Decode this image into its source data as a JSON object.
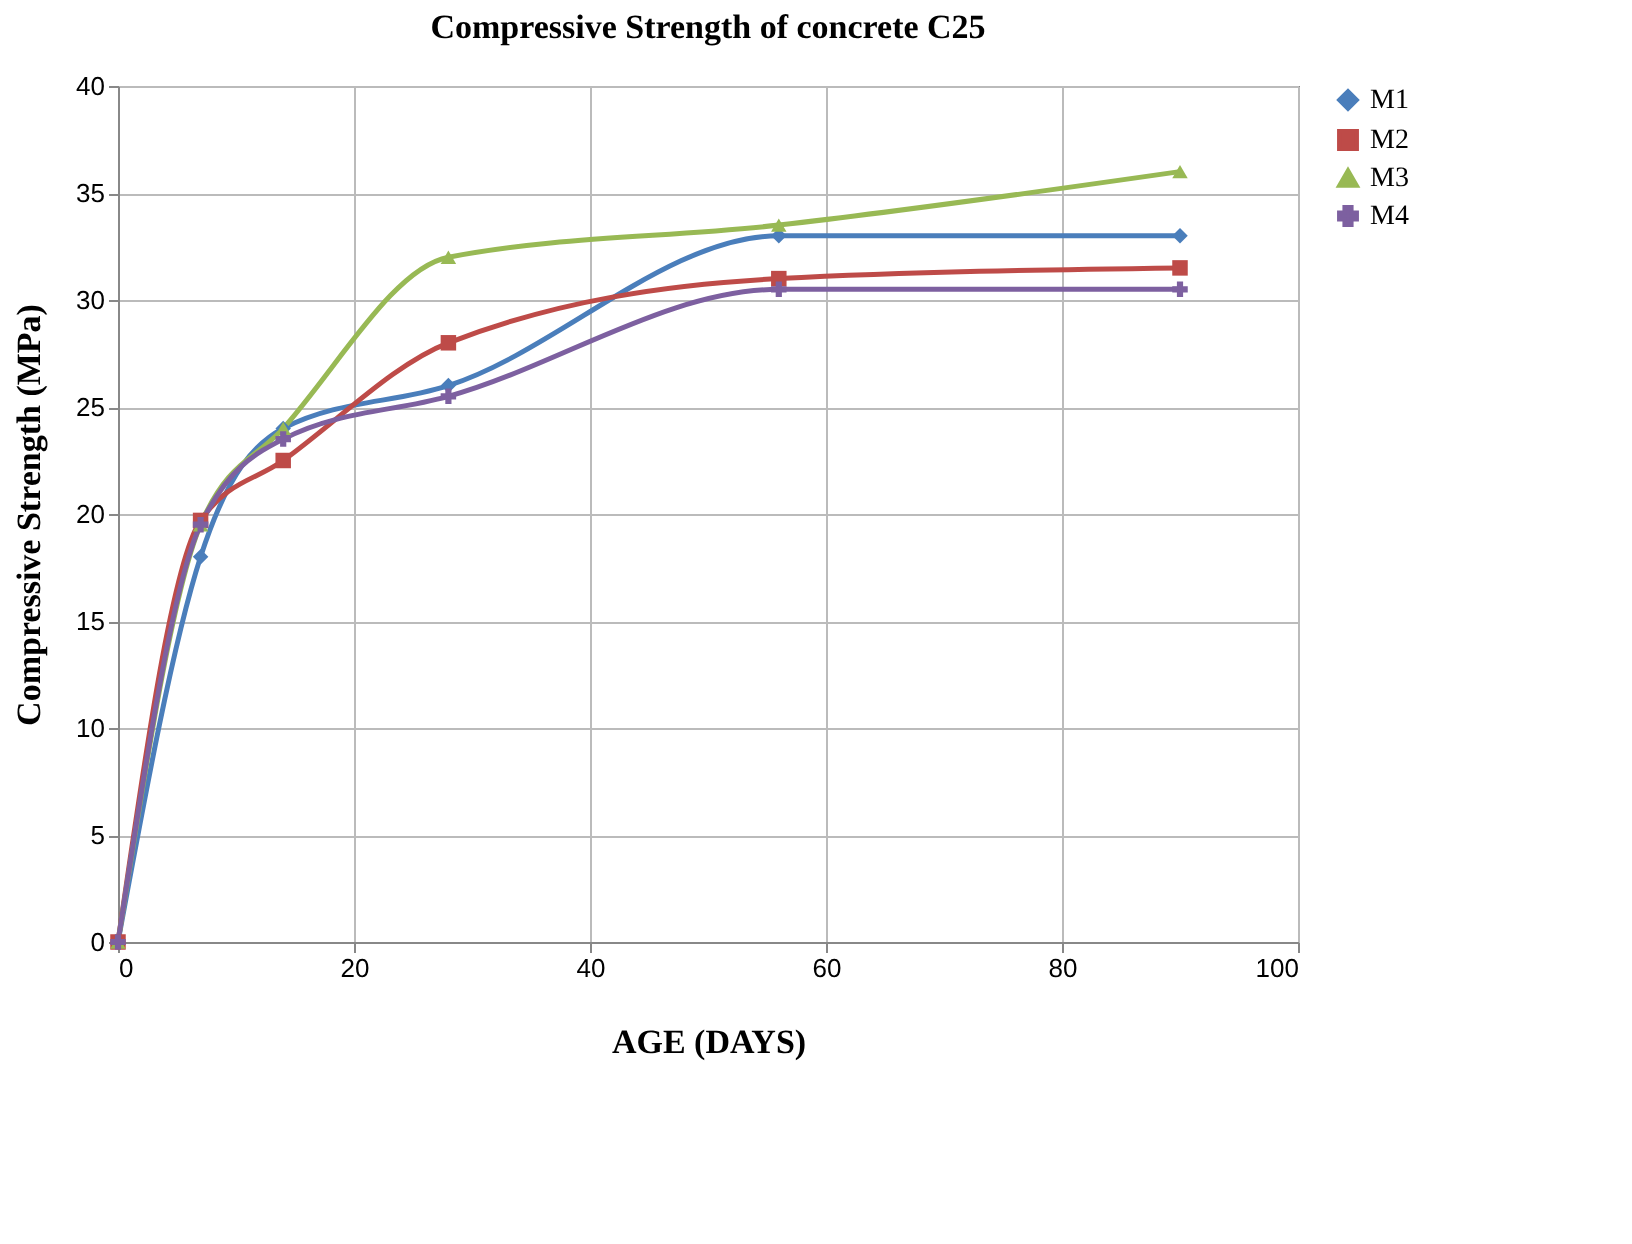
{
  "chart_data": {
    "type": "line",
    "title": "Compressive Strength of concrete C25",
    "xlabel": "AGE (DAYS)",
    "ylabel": "Compressive Strength (MPa)",
    "x": [
      0,
      7,
      14,
      28,
      56,
      90
    ],
    "series": [
      {
        "name": "M1",
        "color": "#4a7ebb",
        "marker": "diamond",
        "values": [
          0,
          18,
          24,
          26,
          33,
          33
        ]
      },
      {
        "name": "M2",
        "color": "#be4b48",
        "marker": "square",
        "values": [
          0,
          19.7,
          22.5,
          28,
          31,
          31.5
        ]
      },
      {
        "name": "M3",
        "color": "#98b954",
        "marker": "triangle",
        "values": [
          0,
          19.5,
          24,
          32,
          33.5,
          36
        ]
      },
      {
        "name": "M4",
        "color": "#7d60a0",
        "marker": "cross",
        "values": [
          0,
          19.5,
          23.5,
          25.5,
          30.5,
          30.5
        ]
      }
    ],
    "xlim": [
      0,
      100
    ],
    "xticks": [
      0,
      20,
      40,
      60,
      80,
      100
    ],
    "ylim": [
      0,
      40
    ],
    "yticks": [
      0,
      5,
      10,
      15,
      20,
      25,
      30,
      35,
      40
    ],
    "grid": true,
    "legend": "right",
    "line_style": "solid"
  }
}
